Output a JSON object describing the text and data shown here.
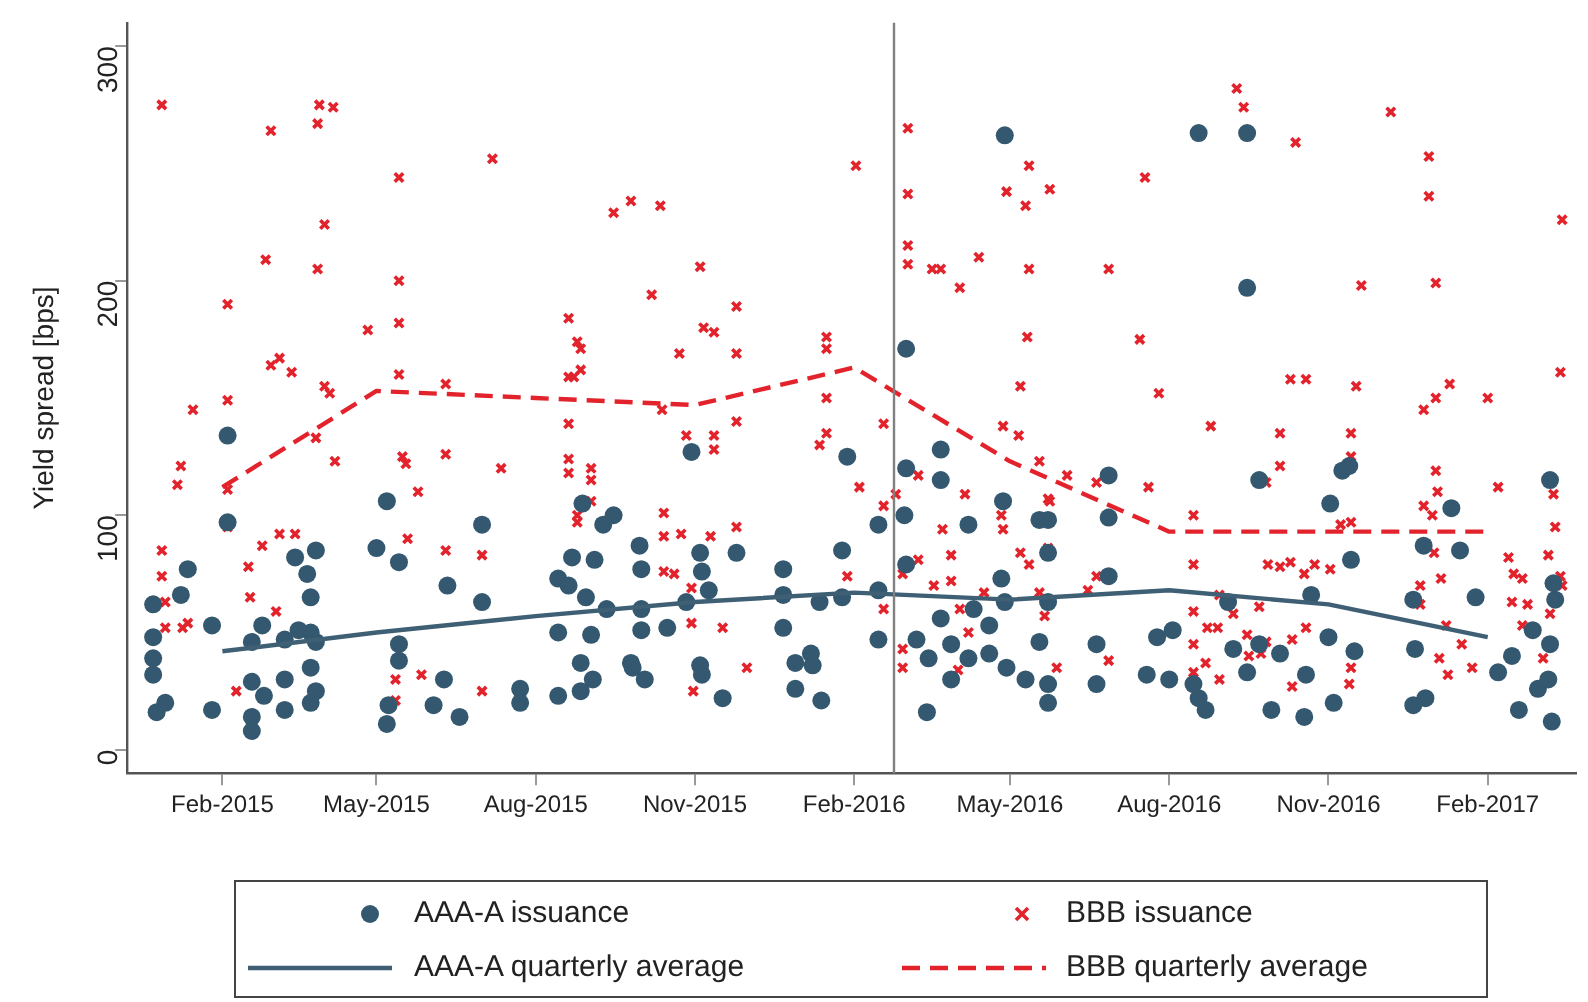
{
  "chart_data": {
    "type": "scatter",
    "ylabel": "Yield spread [bps]",
    "xlim": [
      "2014-12-08",
      "2017-03-24"
    ],
    "xticks": [
      {
        "value": "2015-02",
        "label": "Feb-2015"
      },
      {
        "value": "2015-05",
        "label": "May-2015"
      },
      {
        "value": "2015-08",
        "label": "Aug-2015"
      },
      {
        "value": "2015-11",
        "label": "Nov-2015"
      },
      {
        "value": "2016-02",
        "label": "Feb-2016"
      },
      {
        "value": "2016-05",
        "label": "May-2016"
      },
      {
        "value": "2016-08",
        "label": "Aug-2016"
      },
      {
        "value": "2016-11",
        "label": "Nov-2016"
      },
      {
        "value": "2017-02",
        "label": "Feb-2017"
      }
    ],
    "ylim": [
      -10,
      310
    ],
    "yticks": [
      0,
      100,
      200,
      300
    ],
    "legend": "bottom",
    "ref_lines": [
      {
        "axis": "x",
        "value": "2016-02-24",
        "color": "#808080"
      }
    ],
    "series": [
      {
        "name": "AAA-A issuance",
        "marker": "circle",
        "color": "#34586f",
        "x": [
          "2014-12-23",
          "2014-12-23",
          "2014-12-23",
          "2014-12-23",
          "2014-12-25",
          "2014-12-30",
          "2015-01-08",
          "2015-01-12",
          "2015-01-26",
          "2015-01-26",
          "2015-02-04",
          "2015-02-04",
          "2015-02-18",
          "2015-02-18",
          "2015-02-18",
          "2015-02-18",
          "2015-02-24",
          "2015-02-25",
          "2015-03-09",
          "2015-03-09",
          "2015-03-09",
          "2015-03-15",
          "2015-03-17",
          "2015-03-22",
          "2015-03-24",
          "2015-03-24",
          "2015-03-24",
          "2015-03-24",
          "2015-03-27",
          "2015-03-27",
          "2015-03-27",
          "2015-05-01",
          "2015-05-07",
          "2015-05-14",
          "2015-05-14",
          "2015-05-14",
          "2015-05-08",
          "2015-05-07",
          "2015-06-03",
          "2015-06-09",
          "2015-06-11",
          "2015-06-18",
          "2015-07-01",
          "2015-07-01",
          "2015-07-23",
          "2015-07-23",
          "2015-08-14",
          "2015-08-14",
          "2015-08-14",
          "2015-08-22",
          "2015-08-20",
          "2015-08-27",
          "2015-08-27",
          "2015-09-03",
          "2015-09-02",
          "2015-09-04",
          "2015-08-28",
          "2015-09-09",
          "2015-09-15",
          "2015-09-11",
          "2015-08-30",
          "2015-09-25",
          "2015-09-26",
          "2015-10-01",
          "2015-10-01",
          "2015-09-30",
          "2015-10-01",
          "2015-10-03",
          "2015-10-16",
          "2015-10-27",
          "2015-10-30",
          "2015-11-04",
          "2015-11-05",
          "2015-11-09",
          "2015-11-04",
          "2015-11-05",
          "2015-11-17",
          "2015-11-25",
          "2015-12-22",
          "2015-12-22",
          "2015-12-22",
          "2015-12-29",
          "2015-12-29",
          "2016-01-07",
          "2016-01-08",
          "2016-01-12",
          "2016-01-13",
          "2016-01-25",
          "2016-01-25",
          "2016-01-28",
          "2016-02-15",
          "2016-02-15",
          "2016-02-15",
          "2016-03-02",
          "2016-03-02",
          "2016-03-01",
          "2016-03-02",
          "2016-03-22",
          "2016-03-22",
          "2016-03-14",
          "2016-03-15",
          "2016-03-08",
          "2016-03-22",
          "2016-03-28",
          "2016-03-28",
          "2016-04-07",
          "2016-04-07",
          "2016-04-10",
          "2016-04-19",
          "2016-04-19",
          "2016-04-28",
          "2016-04-27",
          "2016-04-26",
          "2016-04-28",
          "2016-04-29",
          "2016-05-10",
          "2016-05-18",
          "2016-05-23",
          "2016-05-23",
          "2016-05-23",
          "2016-05-23",
          "2016-05-23",
          "2016-05-18",
          "2016-06-27",
          "2016-06-27",
          "2016-06-27",
          "2016-06-20",
          "2016-06-20",
          "2016-07-19",
          "2016-07-25",
          "2016-08-03",
          "2016-08-01",
          "2016-08-18",
          "2016-09-15",
          "2016-09-15",
          "2016-08-15",
          "2016-08-18",
          "2016-08-22",
          "2016-09-04",
          "2016-09-07",
          "2016-09-15",
          "2016-09-22",
          "2016-09-22",
          "2016-09-29",
          "2016-10-04",
          "2016-10-19",
          "2016-10-18",
          "2016-10-22",
          "2016-11-02",
          "2016-11-01",
          "2016-11-04",
          "2016-11-09",
          "2016-11-13",
          "2016-11-14",
          "2016-11-16",
          "2016-12-20",
          "2016-12-27",
          "2016-12-20",
          "2016-12-26",
          "2016-12-21",
          "2017-01-11",
          "2017-01-16",
          "2017-01-25",
          "2017-02-07",
          "2017-02-15",
          "2017-02-19",
          "2017-02-27",
          "2017-03-02",
          "2017-03-08",
          "2017-03-09",
          "2017-03-09",
          "2017-03-11",
          "2017-03-10",
          "2017-03-12"
        ],
        "values": [
          62,
          48,
          39,
          32,
          16,
          20,
          66,
          77,
          53,
          17,
          134,
          97,
          46,
          29,
          14,
          8,
          53,
          23,
          47,
          30,
          17,
          82,
          51,
          75,
          65,
          50,
          35,
          20,
          85,
          46,
          25,
          86,
          106,
          80,
          45,
          38,
          19,
          11,
          19,
          30,
          70,
          14,
          96,
          63,
          26,
          20,
          23,
          50,
          73,
          82,
          70,
          25,
          37,
          30,
          49,
          81,
          105,
          96,
          100,
          60,
          65,
          37,
          35,
          60,
          77,
          87,
          51,
          30,
          52,
          63,
          127,
          84,
          76,
          68,
          36,
          32,
          22,
          84,
          77,
          52,
          66,
          37,
          26,
          41,
          36,
          63,
          21,
          85,
          65,
          125,
          96,
          47,
          68,
          171,
          79,
          100,
          120,
          128,
          115,
          16,
          39,
          47,
          56,
          45,
          30,
          39,
          96,
          60,
          53,
          41,
          262,
          106,
          73,
          63,
          35,
          30,
          98,
          98,
          84,
          28,
          20,
          63,
          46,
          117,
          99,
          74,
          45,
          28,
          32,
          48,
          51,
          30,
          263,
          263,
          197,
          28,
          22,
          17,
          63,
          43,
          33,
          115,
          45,
          17,
          41,
          32,
          14,
          66,
          105,
          48,
          20,
          119,
          121,
          81,
          42,
          19,
          22,
          64,
          87,
          43,
          103,
          85,
          65,
          33,
          40,
          17,
          51,
          26,
          30,
          45,
          115,
          71,
          12,
          64
        ]
      },
      {
        "name": "BBB issuance",
        "marker": "cross",
        "color": "#e3232c",
        "x": [
          "2014-12-28",
          "2014-12-28",
          "2014-12-28",
          "2014-12-30",
          "2014-12-30",
          "2015-01-06",
          "2015-01-08",
          "2015-01-09",
          "2015-01-12",
          "2015-01-15",
          "2015-02-04",
          "2015-02-04",
          "2015-02-04",
          "2015-02-04",
          "2015-02-16",
          "2015-02-17",
          "2015-02-09",
          "2015-02-24",
          "2015-02-26",
          "2015-03-01",
          "2015-03-01",
          "2015-03-06",
          "2015-03-13",
          "2015-03-04",
          "2015-03-06",
          "2015-03-15",
          "2015-03-28",
          "2015-03-29",
          "2015-04-06",
          "2015-03-28",
          "2015-04-01",
          "2015-04-01",
          "2015-04-04",
          "2015-03-27",
          "2015-04-07",
          "2015-04-26",
          "2015-05-14",
          "2015-05-14",
          "2015-05-14",
          "2015-05-14",
          "2015-05-16",
          "2015-05-18",
          "2015-05-19",
          "2015-05-12",
          "2015-05-12",
          "2015-05-25",
          "2015-05-27",
          "2015-06-10",
          "2015-06-10",
          "2015-06-10",
          "2015-07-07",
          "2015-07-12",
          "2015-07-01",
          "2015-07-01",
          "2015-08-20",
          "2015-08-20",
          "2015-08-20",
          "2015-08-20",
          "2015-08-20",
          "2015-08-25",
          "2015-08-27",
          "2015-08-27",
          "2015-08-23",
          "2015-09-02",
          "2015-09-02",
          "2015-09-02",
          "2015-08-25",
          "2015-08-25",
          "2015-09-15",
          "2015-09-25",
          "2015-10-12",
          "2015-10-07",
          "2015-10-13",
          "2015-10-23",
          "2015-10-14",
          "2015-10-14",
          "2015-10-14",
          "2015-10-24",
          "2015-10-20",
          "2015-10-30",
          "2015-10-30",
          "2015-10-31",
          "2015-10-27",
          "2015-11-04",
          "2015-11-06",
          "2015-11-12",
          "2015-11-12",
          "2015-11-12",
          "2015-11-10",
          "2015-11-17",
          "2015-11-25",
          "2015-11-25",
          "2015-11-25",
          "2015-11-25",
          "2015-12-01",
          "2016-02-02",
          "2016-01-16",
          "2016-01-16",
          "2016-01-16",
          "2016-01-16",
          "2016-01-12",
          "2016-01-28",
          "2016-02-04",
          "2016-02-18",
          "2016-02-18",
          "2016-02-18",
          "2016-02-25",
          "2016-03-03",
          "2016-03-03",
          "2016-03-03",
          "2016-03-03",
          "2016-02-29",
          "2016-02-29",
          "2016-02-29",
          "2016-03-09",
          "2016-03-09",
          "2016-03-17",
          "2016-03-22",
          "2016-04-02",
          "2016-04-13",
          "2016-04-05",
          "2016-03-23",
          "2016-03-28",
          "2016-03-18",
          "2016-03-28",
          "2016-04-02",
          "2016-04-07",
          "2016-04-16",
          "2016-04-01",
          "2016-04-27",
          "2016-04-26",
          "2016-04-27",
          "2016-04-29",
          "2016-05-10",
          "2016-05-12",
          "2016-05-12",
          "2016-05-11",
          "2016-05-07",
          "2016-05-06",
          "2016-05-07",
          "2016-05-12",
          "2016-05-24",
          "2016-05-18",
          "2016-05-24",
          "2016-05-18",
          "2016-06-03",
          "2016-05-21",
          "2016-05-23",
          "2016-05-23",
          "2016-05-28",
          "2016-06-15",
          "2016-06-20",
          "2016-06-20",
          "2016-06-27",
          "2016-06-27",
          "2016-07-18",
          "2016-07-15",
          "2016-07-26",
          "2016-07-20",
          "2016-08-15",
          "2016-08-15",
          "2016-08-15",
          "2016-08-15",
          "2016-08-15",
          "2016-08-22",
          "2016-08-23",
          "2016-08-29",
          "2016-08-25",
          "2016-08-30",
          "2016-08-30",
          "2016-09-09",
          "2016-09-13",
          "2016-09-07",
          "2016-09-15",
          "2016-09-16",
          "2016-09-22",
          "2016-09-23",
          "2016-09-26",
          "2016-09-26",
          "2016-09-27",
          "2016-10-04",
          "2016-10-04",
          "2016-10-04",
          "2016-10-10",
          "2016-10-10",
          "2016-10-19",
          "2016-10-11",
          "2016-10-11",
          "2016-10-19",
          "2016-10-18",
          "2016-10-24",
          "2016-10-13",
          "2016-11-02",
          "2016-11-08",
          "2016-11-14",
          "2016-11-14",
          "2016-11-14",
          "2016-11-14",
          "2016-11-13",
          "2016-11-17",
          "2016-11-20",
          "2016-12-07",
          "2016-12-24",
          "2016-12-24",
          "2016-12-26",
          "2016-12-29",
          "2016-12-29",
          "2017-01-02",
          "2017-01-02",
          "2017-01-02",
          "2017-01-03",
          "2016-12-26",
          "2016-12-31",
          "2017-01-01",
          "2017-01-05",
          "2017-01-04",
          "2017-01-08",
          "2017-01-17",
          "2017-01-09",
          "2017-01-10",
          "2017-01-23",
          "2017-02-01",
          "2017-02-07",
          "2017-02-13",
          "2017-02-16",
          "2017-02-15",
          "2017-02-21",
          "2017-02-24",
          "2017-02-21",
          "2017-03-05",
          "2017-03-08",
          "2017-03-11",
          "2017-03-12",
          "2017-03-15",
          "2017-03-16",
          "2017-03-15",
          "2017-03-16",
          "2017-03-09"
        ],
        "values": [
          275,
          85,
          74,
          63,
          52,
          113,
          121,
          52,
          54,
          145,
          190,
          149,
          111,
          95,
          78,
          65,
          25,
          87,
          209,
          264,
          164,
          167,
          161,
          59,
          92,
          92,
          267,
          275,
          274,
          205,
          224,
          155,
          152,
          133,
          123,
          179,
          244,
          200,
          182,
          160,
          125,
          122,
          90,
          30,
          21,
          110,
          32,
          156,
          126,
          85,
          252,
          120,
          83,
          25,
          184,
          159,
          139,
          124,
          118,
          174,
          171,
          162,
          159,
          120,
          115,
          106,
          97,
          100,
          229,
          234,
          232,
          194,
          145,
          169,
          101,
          91,
          76,
          92,
          75,
          69,
          54,
          25,
          134,
          206,
          180,
          178,
          134,
          128,
          91,
          52,
          189,
          169,
          140,
          95,
          35,
          249,
          176,
          171,
          150,
          135,
          130,
          74,
          112,
          139,
          104,
          60,
          109,
          265,
          237,
          215,
          207,
          43,
          35,
          75,
          117,
          81,
          205,
          205,
          197,
          210,
          109,
          94,
          83,
          70,
          72,
          60,
          50,
          67,
          34,
          138,
          100,
          94,
          238,
          232,
          249,
          205,
          176,
          155,
          134,
          84,
          79,
          239,
          123,
          106,
          67,
          117,
          57,
          107,
          86,
          35,
          68,
          74,
          114,
          205,
          38,
          244,
          175,
          152,
          112,
          100,
          79,
          59,
          45,
          33,
          37,
          52,
          52,
          138,
          30,
          66,
          282,
          274,
          58,
          49,
          40,
          61,
          41,
          46,
          114,
          79,
          135,
          121,
          78,
          80,
          158,
          158,
          47,
          27,
          52,
          75,
          79,
          259,
          77,
          96,
          97,
          135,
          125,
          35,
          28,
          155,
          198,
          272,
          70,
          62,
          145,
          253,
          236,
          199,
          150,
          119,
          110,
          104,
          100,
          84,
          73,
          39,
          53,
          45,
          32,
          156,
          35,
          150,
          112,
          82,
          75,
          63,
          73,
          62,
          53,
          39,
          83,
          109,
          95,
          161,
          226,
          74,
          70,
          58
        ]
      },
      {
        "name": "AAA-A quarterly average",
        "type": "line",
        "marker": "none",
        "line_style": "solid",
        "color": "#3e5f74",
        "x": [
          "2015-02",
          "2015-05",
          "2015-08",
          "2015-11",
          "2016-02",
          "2016-05",
          "2016-08",
          "2016-11",
          "2017-02"
        ],
        "values": [
          42,
          50,
          57,
          63,
          67,
          64,
          68,
          62,
          48
        ]
      },
      {
        "name": "BBB quarterly average",
        "type": "line",
        "marker": "none",
        "line_style": "dashed",
        "color": "#e3232c",
        "x": [
          "2015-02",
          "2015-05",
          "2015-08",
          "2015-11",
          "2016-02",
          "2016-05",
          "2016-08",
          "2016-11",
          "2017-02"
        ],
        "values": [
          112,
          153,
          150,
          147,
          163,
          123,
          93,
          93,
          93
        ]
      }
    ]
  }
}
